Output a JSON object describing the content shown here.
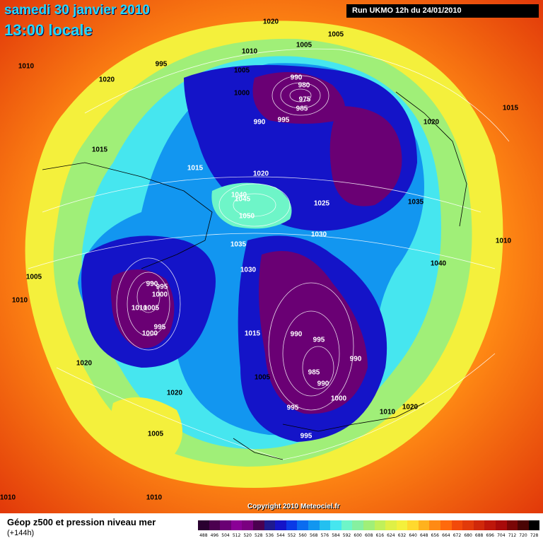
{
  "header": {
    "date": "samedi 30 janvier 2010",
    "time": "13:00 locale",
    "run": "Run UKMO 12h du 24/01/2010"
  },
  "footer": {
    "copyright": "Copyright 2010 Meteociel.fr",
    "legend_title": "Géop z500 et pression niveau mer",
    "legend_sub": "(+144h)"
  },
  "pressure_labels": [
    "1020",
    "1005",
    "1005",
    "1010",
    "1010",
    "995",
    "1020",
    "1005",
    "1000",
    "990",
    "980",
    "975",
    "985",
    "990",
    "995",
    "1020",
    "1015",
    "1015",
    "1015",
    "1020",
    "1040",
    "1045",
    "1050",
    "1025",
    "1035",
    "1035",
    "1030",
    "1030",
    "1010",
    "1040",
    "1005",
    "1010",
    "990",
    "995",
    "1000",
    "1010",
    "1005",
    "1000",
    "995",
    "1015",
    "990",
    "995",
    "990",
    "985",
    "990",
    "1005",
    "1000",
    "1020",
    "1020",
    "1005",
    "995",
    "995",
    "1010",
    "1020",
    "1010",
    "1010"
  ],
  "scale": {
    "labels": [
      "488",
      "496",
      "504",
      "512",
      "520",
      "528",
      "536",
      "544",
      "552",
      "560",
      "568",
      "576",
      "584",
      "592",
      "600",
      "608",
      "616",
      "624",
      "632",
      "640",
      "648",
      "656",
      "664",
      "672",
      "680",
      "688",
      "696",
      "704",
      "712",
      "720",
      "728"
    ],
    "colors": [
      "#2a0030",
      "#4b004f",
      "#6a0074",
      "#8a0096",
      "#7a0080",
      "#4b0050",
      "#1e1a8e",
      "#1414c8",
      "#0a3ae6",
      "#0a6cf0",
      "#1296f0",
      "#23c0f0",
      "#46e6ef",
      "#6ef5c8",
      "#86f0a0",
      "#a0ef78",
      "#c0f05a",
      "#dff046",
      "#f4f03c",
      "#ffd92e",
      "#ffb21e",
      "#ff8a14",
      "#ff6a0c",
      "#f24a0a",
      "#e23a0a",
      "#d0280a",
      "#be160a",
      "#a80a0a",
      "#7a0606",
      "#4a0404",
      "#000000"
    ]
  },
  "colors": {
    "title": "#23d7ff",
    "warm": "#ff6a0c",
    "cold": "#4b0050"
  }
}
